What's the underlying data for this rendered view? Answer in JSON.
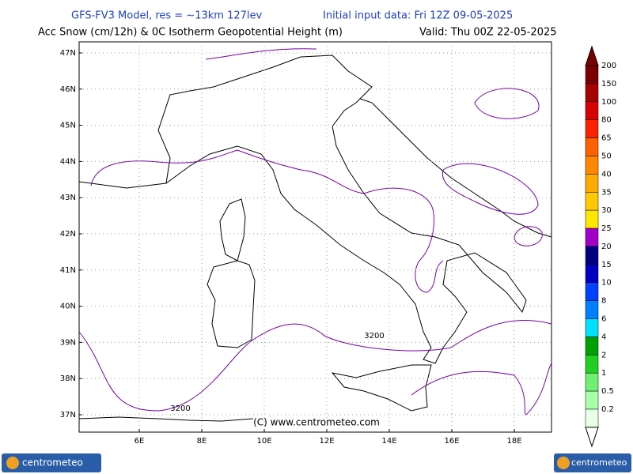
{
  "header": {
    "model": "GFS-FV3 Model, res = ~13km 127lev",
    "init": "Initial input data: Fri 12Z 09-05-2025",
    "field": "Acc Snow (cm/12h) & 0C Isotherm Geopotential Height (m)",
    "valid": "Valid: Thu 00Z 22-05-2025"
  },
  "map": {
    "lat_labels": [
      "47N",
      "46N",
      "45N",
      "44N",
      "43N",
      "42N",
      "41N",
      "40N",
      "39N",
      "38N",
      "37N"
    ],
    "lon_labels": [
      "6E",
      "8E",
      "10E",
      "12E",
      "14E",
      "16E",
      "18E"
    ],
    "contour_labels": [
      "3200",
      "3200"
    ],
    "copyright": "(C) www.centrometeo.com"
  },
  "legend": {
    "levels": [
      {
        "value": 200,
        "color": "#7a0000"
      },
      {
        "value": 150,
        "color": "#a80000"
      },
      {
        "value": 100,
        "color": "#d80000"
      },
      {
        "value": 80,
        "color": "#ff2000"
      },
      {
        "value": 65,
        "color": "#ff6000"
      },
      {
        "value": 50,
        "color": "#ff8800"
      },
      {
        "value": 40,
        "color": "#ffaa00"
      },
      {
        "value": 35,
        "color": "#ffc800"
      },
      {
        "value": 30,
        "color": "#ffe800"
      },
      {
        "value": 25,
        "color": "#a000c8"
      },
      {
        "value": 20,
        "color": "#000080"
      },
      {
        "value": 15,
        "color": "#0000c0"
      },
      {
        "value": 10,
        "color": "#0040ff"
      },
      {
        "value": 8,
        "color": "#0080ff"
      },
      {
        "value": 6,
        "color": "#00e0ff"
      },
      {
        "value": 4,
        "color": "#00a000"
      },
      {
        "value": 2,
        "color": "#20d020"
      },
      {
        "value": 1,
        "color": "#70f070"
      },
      {
        "value": 0.5,
        "color": "#a8ffa8"
      },
      {
        "value": 0.2,
        "color": "#e8ffe8"
      }
    ]
  },
  "logos": [
    "centrometeo",
    "centrometeo"
  ]
}
